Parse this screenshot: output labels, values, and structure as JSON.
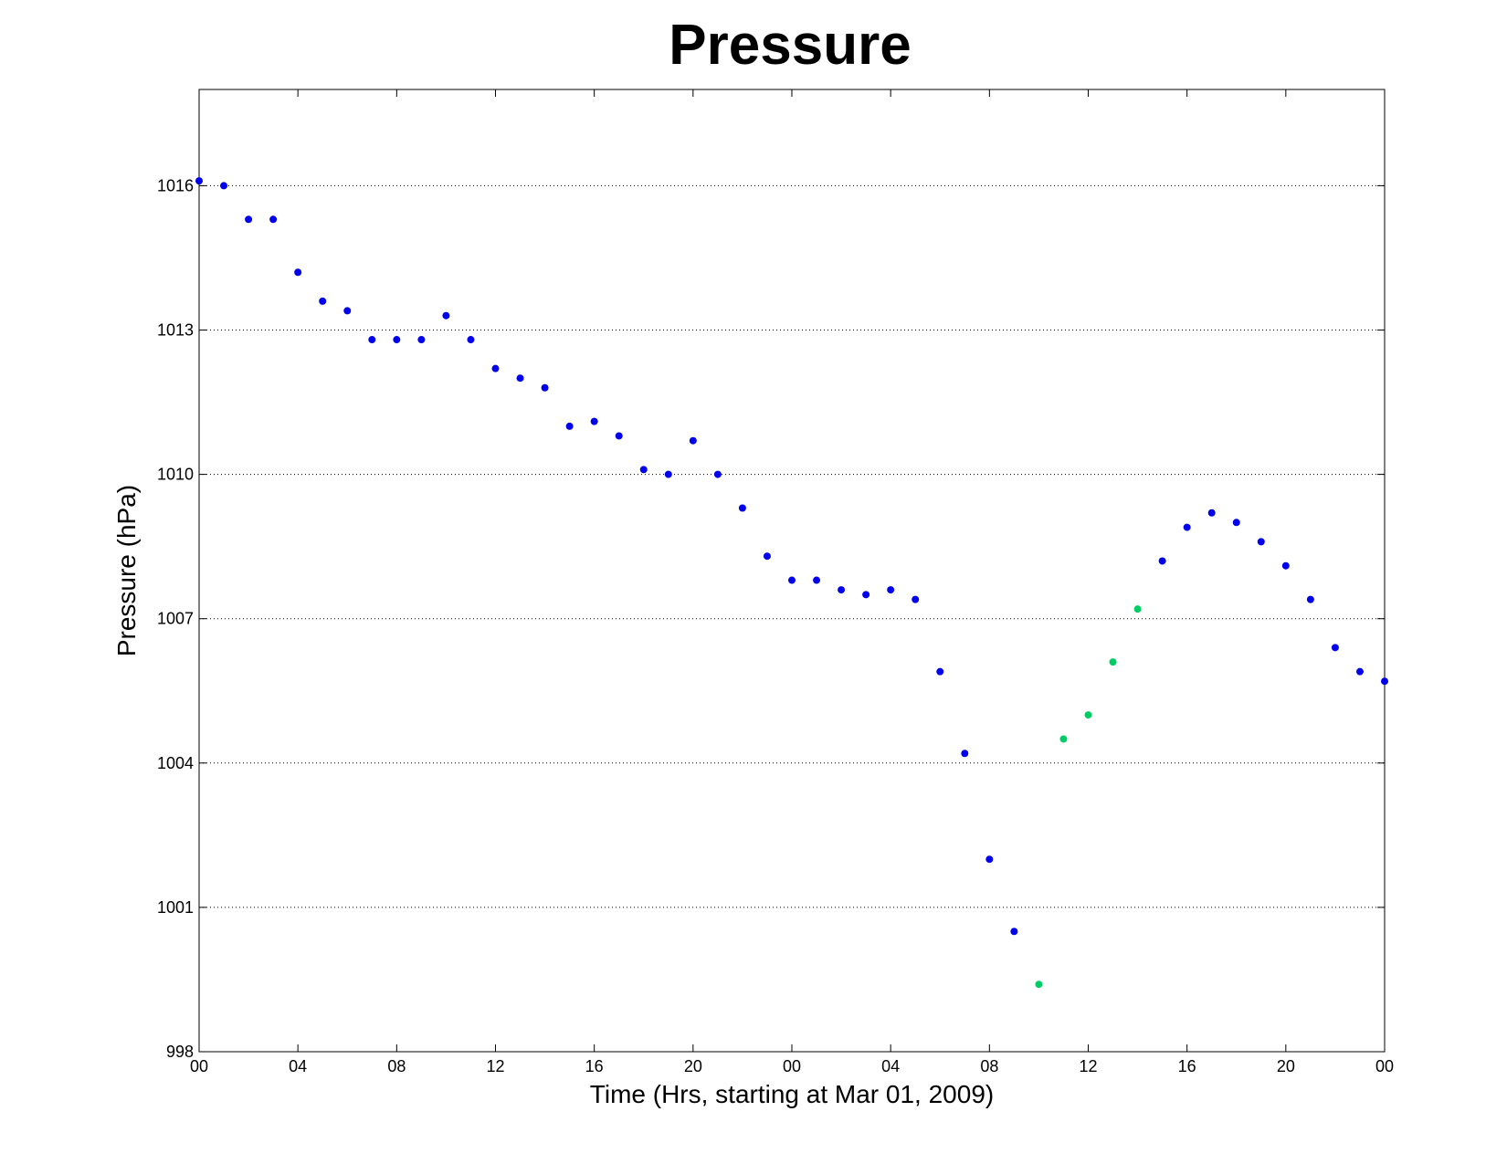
{
  "chart_data": {
    "type": "scatter",
    "title": "Pressure",
    "xlabel": "Time (Hrs, starting at Mar 01, 2009)",
    "ylabel": "Pressure (hPa)",
    "x_units": "hours",
    "xlim": [
      0,
      48
    ],
    "ylim": [
      998,
      1018
    ],
    "xticks": [
      0,
      4,
      8,
      12,
      16,
      20,
      24,
      28,
      32,
      36,
      40,
      44,
      48
    ],
    "xtick_labels": [
      "00",
      "04",
      "08",
      "12",
      "16",
      "20",
      "00",
      "04",
      "08",
      "12",
      "16",
      "20",
      "00"
    ],
    "yticks": [
      998,
      1001,
      1004,
      1007,
      1010,
      1013,
      1016
    ],
    "ytick_labels": [
      "998",
      "1001",
      "1004",
      "1007",
      "1010",
      "1013",
      "1016"
    ],
    "grid": "horizontal dotted",
    "series": [
      {
        "color": "#0000ee",
        "points": [
          [
            0,
            1016.1
          ],
          [
            1,
            1016.0
          ],
          [
            2,
            1015.3
          ],
          [
            3,
            1015.3
          ],
          [
            4,
            1014.2
          ],
          [
            5,
            1013.6
          ],
          [
            6,
            1013.4
          ],
          [
            7,
            1012.8
          ],
          [
            8,
            1012.8
          ],
          [
            9,
            1012.8
          ],
          [
            10,
            1013.3
          ],
          [
            11,
            1012.8
          ],
          [
            12,
            1012.2
          ],
          [
            13,
            1012.0
          ],
          [
            14,
            1011.8
          ],
          [
            15,
            1011.0
          ],
          [
            16,
            1011.1
          ],
          [
            17,
            1010.8
          ],
          [
            18,
            1010.1
          ],
          [
            19,
            1010.0
          ],
          [
            20,
            1010.7
          ],
          [
            21,
            1010.0
          ],
          [
            22,
            1009.3
          ],
          [
            23,
            1008.3
          ],
          [
            24,
            1007.8
          ],
          [
            25,
            1007.8
          ],
          [
            26,
            1007.6
          ],
          [
            27,
            1007.5
          ],
          [
            28,
            1007.6
          ],
          [
            29,
            1007.4
          ],
          [
            30,
            1005.9
          ],
          [
            31,
            1004.2
          ],
          [
            32,
            1002.0
          ],
          [
            33,
            1000.5
          ],
          [
            39,
            1008.2
          ],
          [
            40,
            1008.9
          ],
          [
            41,
            1009.2
          ],
          [
            42,
            1009.0
          ],
          [
            43,
            1008.6
          ],
          [
            44,
            1008.1
          ],
          [
            45,
            1007.4
          ],
          [
            46,
            1006.4
          ],
          [
            47,
            1005.9
          ],
          [
            48,
            1005.7
          ]
        ]
      },
      {
        "color": "#00cc66",
        "points": [
          [
            34,
            999.4
          ],
          [
            35,
            1004.5
          ],
          [
            36,
            1005.0
          ],
          [
            37,
            1006.1
          ],
          [
            38,
            1007.2
          ]
        ]
      }
    ]
  }
}
